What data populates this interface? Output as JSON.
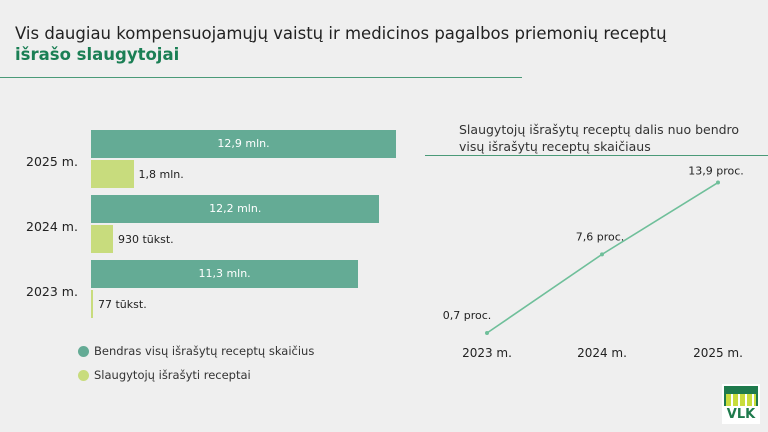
{
  "title": {
    "line1": "Vis daugiau kompensuojamųjų vaistų ir medicinos pagalbos priemonių receptų",
    "line2": "išrašo slaugytojai"
  },
  "logo": {
    "text": "VLK"
  },
  "colors": {
    "total": "#64ab95",
    "nurses": "#c8dc7d",
    "accent": "#1b7f55",
    "line": "#6fbf9a"
  },
  "chart_data": [
    {
      "type": "bar",
      "orientation": "horizontal",
      "categories": [
        "2025 m.",
        "2024 m.",
        "2023 m."
      ],
      "series": [
        {
          "name": "Bendras visų išrašytų receptų skaičius",
          "values": [
            12.9,
            12.2,
            11.3
          ],
          "labels": [
            "12,9 mln.",
            "12,2 mln.",
            "11,3 mln."
          ]
        },
        {
          "name": "Slaugytojų išrašyti receptai",
          "values": [
            1.8,
            0.93,
            0.077
          ],
          "labels": [
            "1,8 mln.",
            "930 tūkst.",
            "77 tūkst."
          ]
        }
      ],
      "unit": "mln.",
      "legend": "bottom-left"
    },
    {
      "type": "line",
      "title": "Slaugytojų išrašytų receptų dalis nuo bendro visų išrašytų receptų skaičiaus",
      "categories": [
        "2023 m.",
        "2024 m.",
        "2025 m."
      ],
      "values": [
        0.7,
        7.6,
        13.9
      ],
      "labels": [
        "0,7 proc.",
        "7,6 proc.",
        "13,9 proc."
      ]
    }
  ]
}
